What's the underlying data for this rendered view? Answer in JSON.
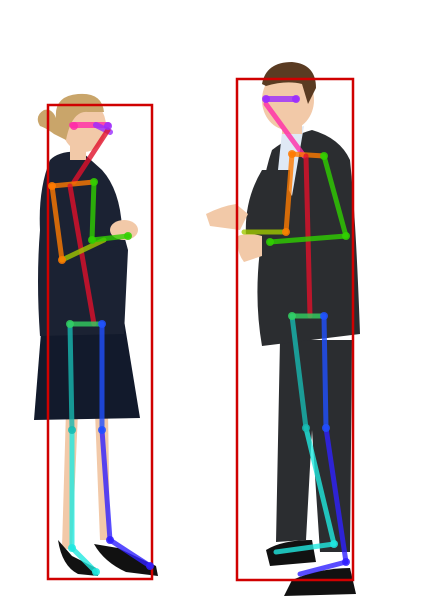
{
  "image": {
    "description_tags": [
      "two-people",
      "business-conversation",
      "pose-estimation-overlay"
    ],
    "background_color": "#ffffff"
  },
  "colors": {
    "bbox": "#d00000",
    "face": "#ff2aa8",
    "face_right": "#9a2cff",
    "spine": "#e0102a",
    "shoulder": "#ff7a00",
    "arm_left": "#a0c800",
    "arm_right": "#30d000",
    "hip": "#33d060",
    "leg_left": "#18b8b0",
    "leg_right": "#2050ff",
    "foot_left": "#20e8e0",
    "foot_right": "#3020ff",
    "jacket_woman": "#1b2233",
    "skirt_woman": "#121a2c",
    "skin": "#f2c9a8",
    "hair_woman": "#c9a56a",
    "suit_man": "#2b2d30",
    "shirt_man": "#dfe9f5",
    "hair_man": "#5a3b22",
    "shoe": "#111111"
  },
  "people": [
    {
      "label": "woman",
      "has_bbox": true
    },
    {
      "label": "man",
      "has_bbox": true
    }
  ]
}
